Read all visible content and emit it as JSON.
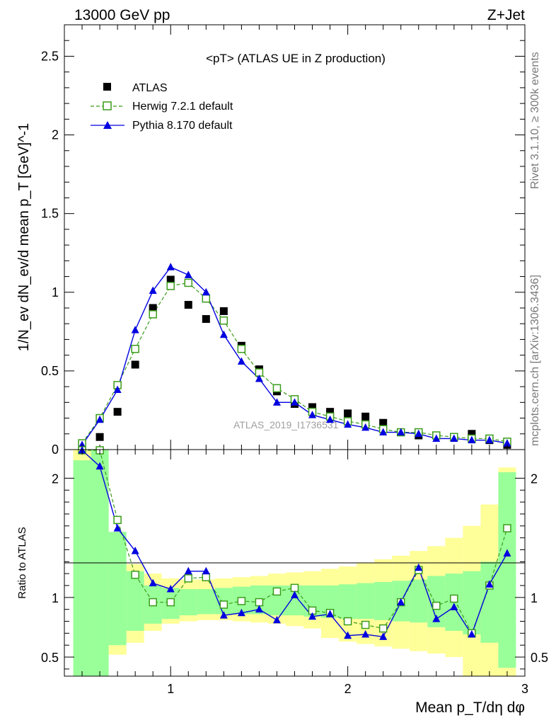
{
  "header": {
    "left": "13000 GeV pp",
    "right": "Z+Jet"
  },
  "side": {
    "rivet": "Rivet 3.1.10, ≥ 300k events",
    "mcplots": "mcplots.cern.ch [arXiv:1306.3436]"
  },
  "chart_data": [
    {
      "type": "scatter",
      "title": "<pT> (ATLAS UE in Z production)",
      "watermark": "ATLAS_2019_I1736531",
      "ylabel": "1/N_ev dN_ev/d mean p_T [GeV]^-1",
      "xlim": [
        0.4,
        3.0
      ],
      "ylim": [
        0,
        2.7
      ],
      "yticks": [
        "0",
        "0.5",
        "1",
        "1.5",
        "2",
        "2.5"
      ],
      "ytick_values": [
        0,
        0.5,
        1,
        1.5,
        2,
        2.5
      ],
      "legend_position": "top-left",
      "x": [
        0.5,
        0.6,
        0.7,
        0.8,
        0.9,
        1.0,
        1.1,
        1.2,
        1.3,
        1.4,
        1.5,
        1.6,
        1.7,
        1.8,
        1.9,
        2.0,
        2.1,
        2.2,
        2.3,
        2.4,
        2.5,
        2.6,
        2.7,
        2.8,
        2.9
      ],
      "series": [
        {
          "name": "ATLAS",
          "style": "marker-square",
          "color": "#000000",
          "values": [
            0.02,
            0.08,
            0.24,
            0.54,
            0.9,
            1.08,
            0.92,
            0.83,
            0.88,
            0.66,
            0.51,
            0.37,
            0.29,
            0.27,
            0.24,
            0.23,
            0.21,
            0.17,
            0.11,
            0.09,
            0.09,
            0.08,
            0.1,
            0.06,
            0.03
          ]
        },
        {
          "name": "Herwig 7.2.1 default",
          "style": "dashed-open-square",
          "color": "#3a9c1a",
          "values": [
            0.04,
            0.2,
            0.41,
            0.64,
            0.86,
            1.04,
            1.06,
            0.96,
            0.82,
            0.64,
            0.49,
            0.39,
            0.32,
            0.24,
            0.21,
            0.18,
            0.16,
            0.13,
            0.11,
            0.11,
            0.09,
            0.08,
            0.07,
            0.07,
            0.05
          ]
        },
        {
          "name": "Pythia 8.170 default",
          "style": "solid-filled-triangle",
          "color": "#0000e0",
          "values": [
            0.03,
            0.19,
            0.38,
            0.76,
            1.01,
            1.16,
            1.11,
            1.0,
            0.73,
            0.56,
            0.45,
            0.3,
            0.3,
            0.22,
            0.19,
            0.16,
            0.14,
            0.11,
            0.11,
            0.1,
            0.07,
            0.07,
            0.06,
            0.06,
            0.04
          ]
        }
      ]
    },
    {
      "type": "scatter",
      "ylabel": "Ratio to ATLAS",
      "xlabel": "Mean p_T/dη dφ",
      "xlim": [
        0.4,
        3.0
      ],
      "ylim": [
        0.34,
        2.24
      ],
      "xticks": [
        "1",
        "2",
        "3"
      ],
      "xtick_values": [
        1,
        2,
        3
      ],
      "yticks": [
        "0.5",
        "1",
        "2"
      ],
      "ytick_values": [
        0.5,
        1,
        2
      ],
      "x": [
        0.5,
        0.6,
        0.7,
        0.8,
        0.9,
        1.0,
        1.1,
        1.2,
        1.3,
        1.4,
        1.5,
        1.6,
        1.7,
        1.8,
        1.9,
        2.0,
        2.1,
        2.2,
        2.3,
        2.4,
        2.5,
        2.6,
        2.7,
        2.8,
        2.9
      ],
      "band_edges": [
        0.45,
        0.55,
        0.65,
        0.75,
        0.85,
        0.95,
        1.05,
        1.15,
        1.25,
        1.35,
        1.45,
        1.55,
        1.65,
        1.75,
        1.85,
        1.95,
        2.05,
        2.15,
        2.25,
        2.35,
        2.45,
        2.55,
        2.65,
        2.75,
        2.85,
        2.95
      ],
      "band_green": [
        [
          0.34,
          2.15
        ],
        [
          0.34,
          2.24
        ],
        [
          0.6,
          1.55
        ],
        [
          0.72,
          1.22
        ],
        [
          0.78,
          1.1
        ],
        [
          0.82,
          1.08
        ],
        [
          0.85,
          1.07
        ],
        [
          0.86,
          1.07
        ],
        [
          0.86,
          1.08
        ],
        [
          0.86,
          1.09
        ],
        [
          0.86,
          1.1
        ],
        [
          0.85,
          1.1
        ],
        [
          0.85,
          1.1
        ],
        [
          0.84,
          1.1
        ],
        [
          0.83,
          1.1
        ],
        [
          0.82,
          1.11
        ],
        [
          0.82,
          1.12
        ],
        [
          0.81,
          1.13
        ],
        [
          0.8,
          1.14
        ],
        [
          0.79,
          1.15
        ],
        [
          0.75,
          1.18
        ],
        [
          0.72,
          1.2
        ],
        [
          0.69,
          1.22
        ],
        [
          0.62,
          1.3
        ],
        [
          0.41,
          2.05
        ]
      ],
      "band_yellow": [
        [
          0.34,
          2.24
        ],
        [
          0.38,
          2.24
        ],
        [
          0.52,
          1.35
        ],
        [
          0.62,
          1.28
        ],
        [
          0.72,
          1.2
        ],
        [
          0.78,
          1.16
        ],
        [
          0.8,
          1.15
        ],
        [
          0.81,
          1.15
        ],
        [
          0.81,
          1.16
        ],
        [
          0.8,
          1.17
        ],
        [
          0.79,
          1.18
        ],
        [
          0.78,
          1.2
        ],
        [
          0.76,
          1.21
        ],
        [
          0.74,
          1.22
        ],
        [
          0.66,
          1.24
        ],
        [
          0.63,
          1.26
        ],
        [
          0.61,
          1.29
        ],
        [
          0.59,
          1.32
        ],
        [
          0.57,
          1.35
        ],
        [
          0.55,
          1.39
        ],
        [
          0.53,
          1.43
        ],
        [
          0.5,
          1.5
        ],
        [
          0.34,
          1.6
        ],
        [
          0.34,
          1.78
        ],
        [
          0.34,
          2.09
        ]
      ],
      "series": [
        {
          "name": "Herwig 7.2.1 default",
          "style": "dashed-open-square",
          "color": "#3a9c1a",
          "values": [
            2.24,
            2.24,
            1.65,
            1.19,
            0.96,
            0.96,
            1.16,
            1.17,
            0.94,
            0.97,
            0.96,
            1.05,
            1.08,
            0.89,
            0.87,
            0.8,
            0.77,
            0.74,
            0.96,
            1.23,
            0.93,
            0.99,
            0.7,
            1.1,
            1.58
          ]
        },
        {
          "name": "Pythia 8.170 default",
          "style": "solid-filled-triangle",
          "color": "#0000e0",
          "values": [
            2.24,
            2.1,
            1.58,
            1.39,
            1.12,
            1.07,
            1.22,
            1.22,
            0.85,
            0.87,
            0.9,
            0.81,
            1.02,
            0.84,
            0.86,
            0.68,
            0.69,
            0.67,
            0.96,
            1.25,
            0.82,
            0.92,
            0.69,
            1.11,
            1.37
          ]
        }
      ]
    }
  ]
}
